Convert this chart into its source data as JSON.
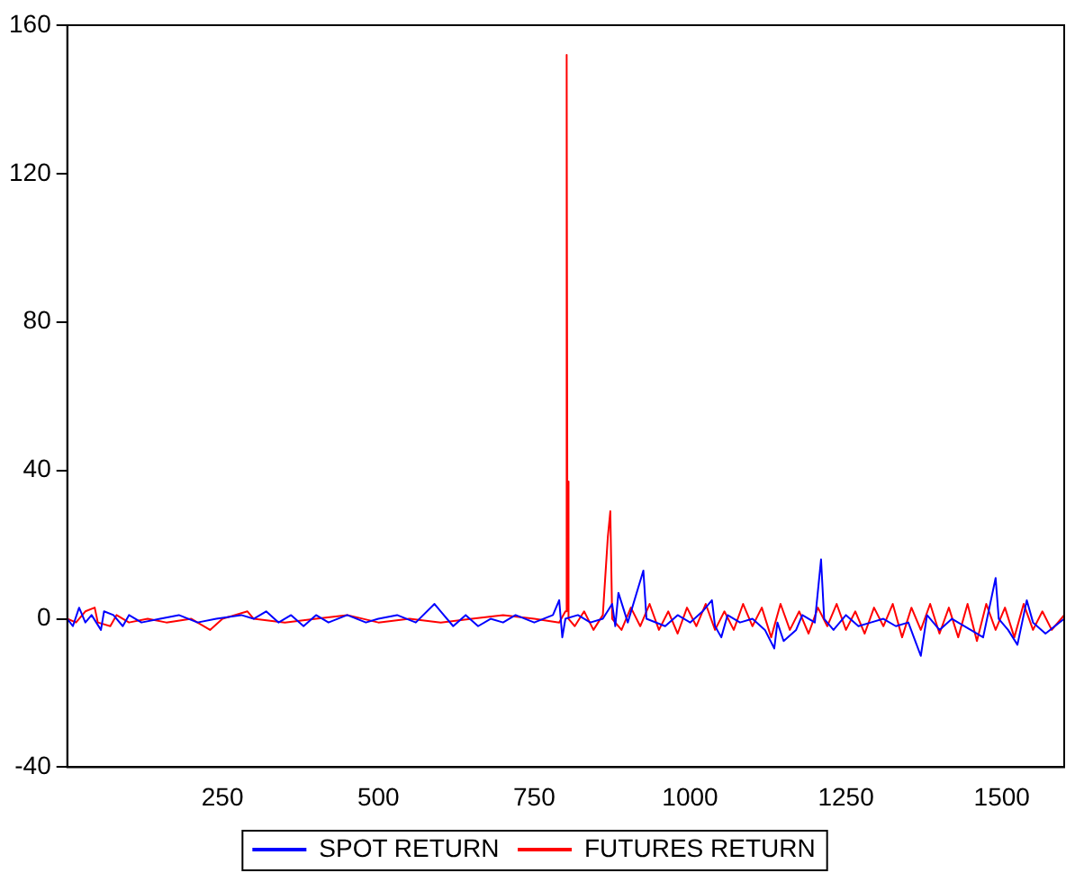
{
  "chart_data": {
    "type": "line",
    "xlim": [
      1,
      1600
    ],
    "xticks": [
      250,
      500,
      750,
      1000,
      1250,
      1500
    ],
    "ylim": [
      -40,
      160
    ],
    "yticks": [
      -40,
      0,
      40,
      80,
      120,
      160
    ],
    "grid": false,
    "legend": "bottom",
    "marker": "none",
    "line_style": "solid",
    "series": [
      {
        "name": "SPOT RETURN",
        "color": "#0000ff",
        "x": [
          1,
          10,
          20,
          30,
          40,
          55,
          60,
          75,
          90,
          100,
          120,
          150,
          180,
          210,
          240,
          280,
          300,
          320,
          340,
          360,
          380,
          400,
          420,
          450,
          480,
          500,
          530,
          560,
          590,
          600,
          620,
          640,
          660,
          680,
          700,
          720,
          750,
          780,
          790,
          795,
          800,
          820,
          840,
          860,
          875,
          880,
          885,
          900,
          925,
          930,
          960,
          980,
          1000,
          1020,
          1035,
          1040,
          1050,
          1060,
          1080,
          1100,
          1120,
          1135,
          1140,
          1150,
          1170,
          1180,
          1200,
          1210,
          1215,
          1230,
          1250,
          1270,
          1290,
          1310,
          1330,
          1350,
          1370,
          1380,
          1400,
          1420,
          1450,
          1470,
          1490,
          1495,
          1510,
          1525,
          1540,
          1550,
          1570,
          1600
        ],
        "values": [
          0,
          -2,
          3,
          -1,
          1,
          -3,
          2,
          1,
          -2,
          1,
          -1,
          0,
          1,
          -1,
          0,
          1,
          0,
          2,
          -1,
          1,
          -2,
          1,
          -1,
          1,
          -1,
          0,
          1,
          -1,
          4,
          2,
          -2,
          1,
          -2,
          0,
          -1,
          1,
          -1,
          1,
          5,
          -5,
          0,
          1,
          -1,
          0,
          4,
          -2,
          7,
          -1,
          13,
          0,
          -2,
          1,
          -1,
          2,
          5,
          -2,
          -5,
          1,
          -1,
          0,
          -3,
          -8,
          -1,
          -6,
          -3,
          1,
          -1,
          16,
          0,
          -3,
          1,
          -2,
          -1,
          0,
          -2,
          -1,
          -10,
          1,
          -3,
          0,
          -3,
          -5,
          11,
          0,
          -3,
          -7,
          5,
          -1,
          -4,
          0
        ]
      },
      {
        "name": "FUTURES RETURN",
        "color": "#ff0000",
        "x": [
          1,
          15,
          30,
          45,
          50,
          70,
          80,
          100,
          130,
          160,
          200,
          230,
          250,
          290,
          300,
          350,
          400,
          450,
          500,
          550,
          600,
          650,
          700,
          750,
          790,
          800,
          802,
          803,
          805,
          815,
          830,
          845,
          860,
          868,
          872,
          875,
          890,
          905,
          920,
          935,
          950,
          965,
          980,
          995,
          1010,
          1025,
          1040,
          1055,
          1070,
          1085,
          1100,
          1115,
          1130,
          1145,
          1160,
          1175,
          1190,
          1205,
          1220,
          1235,
          1250,
          1265,
          1280,
          1295,
          1310,
          1325,
          1340,
          1355,
          1370,
          1385,
          1400,
          1415,
          1430,
          1445,
          1460,
          1475,
          1490,
          1505,
          1520,
          1535,
          1550,
          1565,
          1580,
          1600
        ],
        "values": [
          0,
          -1,
          2,
          3,
          -1,
          -2,
          1,
          -1,
          0,
          -1,
          0,
          -3,
          0,
          2,
          0,
          -1,
          0,
          1,
          -1,
          0,
          -1,
          0,
          1,
          0,
          -1,
          2,
          152,
          37,
          0,
          -2,
          2,
          -3,
          1,
          22,
          29,
          0,
          -3,
          3,
          -2,
          4,
          -3,
          2,
          -4,
          3,
          -2,
          4,
          -3,
          2,
          -3,
          4,
          -2,
          3,
          -5,
          4,
          -3,
          2,
          -4,
          3,
          -2,
          4,
          -3,
          2,
          -4,
          3,
          -2,
          4,
          -5,
          3,
          -3,
          4,
          -4,
          3,
          -5,
          4,
          -6,
          4,
          -3,
          3,
          -5,
          4,
          -3,
          2,
          -3,
          1
        ]
      }
    ]
  }
}
